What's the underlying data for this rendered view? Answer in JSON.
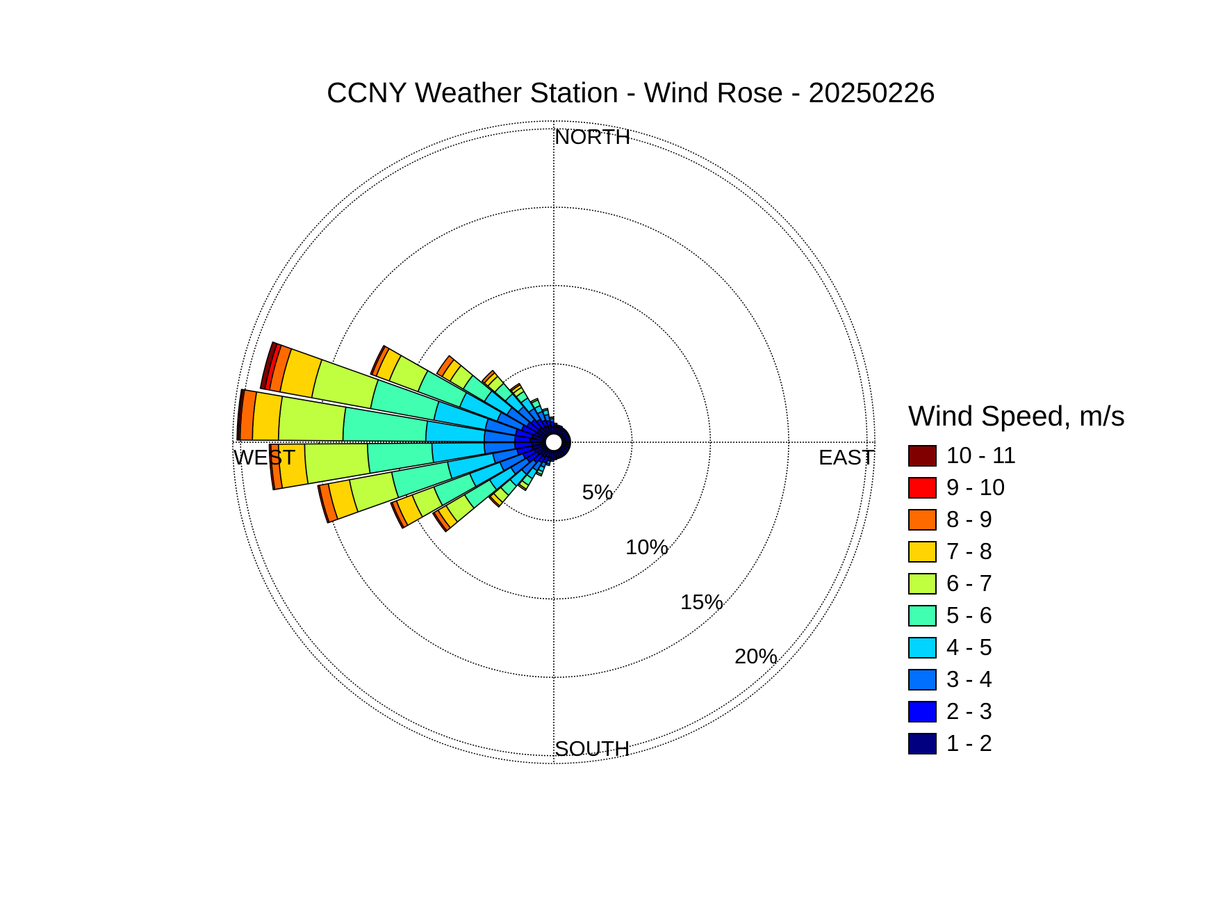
{
  "chart_data": {
    "type": "windrose",
    "title": "CCNY Weather Station - Wind Rose - 20250226",
    "directions": {
      "north": "NORTH",
      "east": "EAST",
      "south": "SOUTH",
      "west": "WEST"
    },
    "radial_ticks": [
      {
        "value": 5,
        "label": "5%"
      },
      {
        "value": 10,
        "label": "10%"
      },
      {
        "value": 15,
        "label": "15%"
      },
      {
        "value": 20,
        "label": "20%"
      }
    ],
    "rmax": 20.5,
    "grid": true,
    "legend": {
      "title": "Wind Speed, m/s",
      "placement": "right",
      "bins": [
        {
          "label": "10 - 11",
          "color": "#800000"
        },
        {
          "label": "9 - 10",
          "color": "#ff0000"
        },
        {
          "label": "8 - 9",
          "color": "#ff6a00"
        },
        {
          "label": "7 - 8",
          "color": "#ffd400"
        },
        {
          "label": "6 - 7",
          "color": "#bfff40"
        },
        {
          "label": "5 - 6",
          "color": "#40ffb0"
        },
        {
          "label": "4 - 5",
          "color": "#00d4ff"
        },
        {
          "label": "3 - 4",
          "color": "#0070ff"
        },
        {
          "label": "2 - 3",
          "color": "#0000ff"
        },
        {
          "label": "1 - 2",
          "color": "#000080"
        }
      ]
    },
    "bin_order_inner_to_outer": [
      "1 - 2",
      "2 - 3",
      "3 - 4",
      "4 - 5",
      "5 - 6",
      "6 - 7",
      "7 - 8",
      "8 - 9",
      "9 - 10",
      "10 - 11"
    ],
    "sector_width_deg": 10,
    "sectors": [
      {
        "direction_deg": 235,
        "cumulative": [
          0.7,
          1.5,
          2.7,
          4.3,
          6.2,
          7.6,
          8.2,
          8.5,
          8.6,
          8.6
        ]
      },
      {
        "direction_deg": 245,
        "cumulative": [
          0.8,
          1.6,
          3.2,
          5.3,
          7.8,
          9.3,
          10.4,
          10.7,
          10.8,
          10.8
        ]
      },
      {
        "direction_deg": 255,
        "cumulative": [
          0.9,
          1.9,
          3.5,
          6.5,
          10.2,
          13.0,
          14.4,
          15.0,
          15.1,
          15.1
        ]
      },
      {
        "direction_deg": 265,
        "cumulative": [
          0.9,
          2.0,
          4.0,
          7.4,
          11.6,
          15.7,
          17.4,
          17.9,
          18.0,
          18.0
        ]
      },
      {
        "direction_deg": 275,
        "cumulative": [
          1.0,
          2.0,
          4.0,
          7.8,
          13.2,
          17.4,
          19.1,
          19.9,
          20.0,
          20.1
        ]
      },
      {
        "direction_deg": 285,
        "cumulative": [
          0.9,
          2.0,
          4.0,
          7.4,
          11.6,
          15.5,
          17.6,
          18.3,
          18.6,
          18.9
        ]
      },
      {
        "direction_deg": 295,
        "cumulative": [
          0.8,
          1.7,
          3.4,
          6.0,
          8.9,
          10.9,
          11.8,
          12.1,
          12.2,
          12.2
        ]
      },
      {
        "direction_deg": 305,
        "cumulative": [
          0.7,
          1.5,
          3.0,
          4.7,
          6.3,
          7.3,
          7.9,
          8.3,
          8.3,
          8.3
        ]
      },
      {
        "direction_deg": 315,
        "cumulative": [
          0.7,
          1.4,
          2.5,
          3.6,
          4.5,
          5.1,
          5.4,
          5.6,
          5.6,
          5.6
        ]
      },
      {
        "direction_deg": 325,
        "cumulative": [
          0.6,
          1.2,
          2.0,
          2.8,
          3.3,
          3.6,
          3.8,
          3.9,
          3.9,
          3.9
        ]
      },
      {
        "direction_deg": 335,
        "cumulative": [
          0.6,
          1.0,
          1.6,
          2.0,
          2.4,
          2.5,
          2.5,
          2.5,
          2.5,
          2.5
        ]
      },
      {
        "direction_deg": 345,
        "cumulative": [
          0.6,
          0.9,
          1.3,
          1.6,
          1.7,
          1.7,
          1.7,
          1.7,
          1.7,
          1.7
        ]
      },
      {
        "direction_deg": 355,
        "cumulative": [
          0.5,
          0.8,
          1.0,
          1.1,
          1.1,
          1.1,
          1.1,
          1.1,
          1.1,
          1.1
        ]
      },
      {
        "direction_deg": 225,
        "cumulative": [
          0.6,
          1.2,
          2.2,
          3.2,
          4.0,
          4.6,
          4.9,
          5.0,
          5.0,
          5.0
        ]
      },
      {
        "direction_deg": 215,
        "cumulative": [
          0.6,
          1.0,
          1.6,
          2.2,
          2.7,
          3.0,
          3.1,
          3.1,
          3.1,
          3.1
        ]
      },
      {
        "direction_deg": 205,
        "cumulative": [
          0.5,
          0.9,
          1.2,
          1.5,
          1.7,
          1.8,
          1.8,
          1.8,
          1.8,
          1.8
        ]
      },
      {
        "direction_deg": 195,
        "cumulative": [
          0.5,
          0.7,
          0.9,
          1.0,
          1.0,
          1.0,
          1.0,
          1.0,
          1.0,
          1.0
        ]
      },
      {
        "direction_deg": 5,
        "cumulative": [
          0.5,
          0.6,
          0.7,
          0.7,
          0.7,
          0.7,
          0.7,
          0.7,
          0.7,
          0.7
        ]
      },
      {
        "direction_deg": 15,
        "cumulative": [
          0.5,
          0.6,
          0.6,
          0.6,
          0.6,
          0.6,
          0.6,
          0.6,
          0.6,
          0.6
        ]
      },
      {
        "direction_deg": 185,
        "cumulative": [
          0.5,
          0.6,
          0.7,
          0.7,
          0.7,
          0.7,
          0.7,
          0.7,
          0.7,
          0.7
        ]
      },
      {
        "direction_deg": 175,
        "cumulative": [
          0.5,
          0.6,
          0.6,
          0.6,
          0.6,
          0.6,
          0.6,
          0.6,
          0.6,
          0.6
        ]
      },
      {
        "direction_deg": 25,
        "cumulative": [
          0.5,
          0.6,
          0.6,
          0.6,
          0.6,
          0.6,
          0.6,
          0.6,
          0.6,
          0.6
        ]
      },
      {
        "direction_deg": 35,
        "cumulative": [
          0.5,
          0.55,
          0.55,
          0.55,
          0.55,
          0.55,
          0.55,
          0.55,
          0.55,
          0.55
        ]
      },
      {
        "direction_deg": 45,
        "cumulative": [
          0.5,
          0.55,
          0.55,
          0.55,
          0.55,
          0.55,
          0.55,
          0.55,
          0.55,
          0.55
        ]
      },
      {
        "direction_deg": 55,
        "cumulative": [
          0.5,
          0.55,
          0.55,
          0.55,
          0.55,
          0.55,
          0.55,
          0.55,
          0.55,
          0.55
        ]
      },
      {
        "direction_deg": 65,
        "cumulative": [
          0.5,
          0.55,
          0.55,
          0.55,
          0.55,
          0.55,
          0.55,
          0.55,
          0.55,
          0.55
        ]
      },
      {
        "direction_deg": 75,
        "cumulative": [
          0.5,
          0.55,
          0.55,
          0.55,
          0.55,
          0.55,
          0.55,
          0.55,
          0.55,
          0.55
        ]
      },
      {
        "direction_deg": 85,
        "cumulative": [
          0.5,
          0.55,
          0.55,
          0.55,
          0.55,
          0.55,
          0.55,
          0.55,
          0.55,
          0.55
        ]
      },
      {
        "direction_deg": 95,
        "cumulative": [
          0.5,
          0.55,
          0.55,
          0.55,
          0.55,
          0.55,
          0.55,
          0.55,
          0.55,
          0.55
        ]
      },
      {
        "direction_deg": 105,
        "cumulative": [
          0.5,
          0.55,
          0.55,
          0.55,
          0.55,
          0.55,
          0.55,
          0.55,
          0.55,
          0.55
        ]
      },
      {
        "direction_deg": 115,
        "cumulative": [
          0.5,
          0.55,
          0.55,
          0.55,
          0.55,
          0.55,
          0.55,
          0.55,
          0.55,
          0.55
        ]
      },
      {
        "direction_deg": 125,
        "cumulative": [
          0.5,
          0.55,
          0.55,
          0.55,
          0.55,
          0.55,
          0.55,
          0.55,
          0.55,
          0.55
        ]
      },
      {
        "direction_deg": 135,
        "cumulative": [
          0.5,
          0.55,
          0.55,
          0.55,
          0.55,
          0.55,
          0.55,
          0.55,
          0.55,
          0.55
        ]
      },
      {
        "direction_deg": 145,
        "cumulative": [
          0.5,
          0.55,
          0.55,
          0.55,
          0.55,
          0.55,
          0.55,
          0.55,
          0.55,
          0.55
        ]
      },
      {
        "direction_deg": 155,
        "cumulative": [
          0.5,
          0.55,
          0.55,
          0.55,
          0.55,
          0.55,
          0.55,
          0.55,
          0.55,
          0.55
        ]
      },
      {
        "direction_deg": 165,
        "cumulative": [
          0.5,
          0.55,
          0.55,
          0.55,
          0.55,
          0.55,
          0.55,
          0.55,
          0.55,
          0.55
        ]
      }
    ]
  }
}
